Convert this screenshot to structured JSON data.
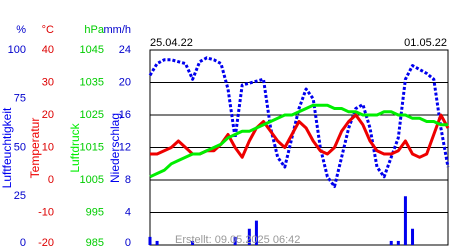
{
  "chart_data": {
    "type": "line",
    "date_start": "25.04.22",
    "date_end": "01.05.22",
    "note": "Erstellt: 09.05.2025 06:42",
    "grid": true,
    "axes": [
      {
        "unit": "%",
        "color": "#0000cc",
        "lim": [
          0,
          100
        ],
        "ticks": [
          0,
          25,
          50,
          75,
          100
        ]
      },
      {
        "unit": "°C",
        "color": "#dd0000",
        "lim": [
          -20,
          40
        ],
        "ticks": [
          -20,
          -10,
          0,
          10,
          20,
          30,
          40
        ]
      },
      {
        "unit": "hPa",
        "color": "#00cc00",
        "lim": [
          985,
          1045
        ],
        "ticks": [
          985,
          995,
          1005,
          1015,
          1025,
          1035,
          1045
        ]
      },
      {
        "unit": "mm/h",
        "color": "#0000cc",
        "lim": [
          0,
          24
        ],
        "ticks": [
          0,
          4,
          8,
          12,
          16,
          20,
          24
        ]
      }
    ],
    "series": [
      {
        "name": "Luftfeuchtigkeit",
        "axis": 0,
        "style": "dotted",
        "color": "#0000ee",
        "values": [
          87,
          93,
          95,
          95,
          94,
          93,
          85,
          94,
          96,
          95,
          93,
          80,
          55,
          82,
          83,
          84,
          85,
          60,
          45,
          40,
          55,
          70,
          80,
          75,
          50,
          35,
          30,
          45,
          60,
          70,
          72,
          60,
          40,
          35,
          45,
          55,
          85,
          92,
          90,
          88,
          85,
          60,
          40
        ]
      },
      {
        "name": "Temperatur",
        "axis": 1,
        "style": "line",
        "color": "#ee0000",
        "values": [
          8,
          8,
          9,
          10,
          12,
          10,
          8,
          8,
          9,
          9,
          11,
          14,
          10,
          7,
          12,
          16,
          18,
          15,
          12,
          10,
          14,
          18,
          16,
          12,
          9,
          8,
          10,
          15,
          18,
          20,
          17,
          12,
          9,
          8,
          8,
          9,
          12,
          8,
          7,
          8,
          14,
          20,
          16
        ]
      },
      {
        "name": "Luftdruck",
        "axis": 2,
        "style": "line",
        "color": "#00ee00",
        "values": [
          1006,
          1007,
          1008,
          1010,
          1011,
          1012,
          1013,
          1013,
          1014,
          1015,
          1016,
          1018,
          1019,
          1020,
          1020,
          1021,
          1022,
          1023,
          1024,
          1025,
          1025,
          1026,
          1027,
          1028,
          1028,
          1028,
          1027,
          1027,
          1026,
          1026,
          1025,
          1025,
          1025,
          1026,
          1026,
          1025,
          1025,
          1024,
          1024,
          1023,
          1023,
          1022,
          1022
        ]
      },
      {
        "name": "Niederschlag",
        "axis": 3,
        "style": "bar",
        "color": "#0000ee",
        "values": [
          1,
          0.5,
          0,
          0,
          0,
          0,
          0.5,
          0,
          0,
          0,
          0,
          0,
          1,
          0,
          2,
          3,
          0,
          0,
          0,
          0,
          0,
          0,
          0,
          0,
          0,
          0,
          0,
          0,
          0,
          0,
          0,
          0,
          0,
          0,
          0.5,
          0.5,
          6,
          2,
          0,
          0,
          0,
          0,
          0
        ]
      }
    ]
  }
}
